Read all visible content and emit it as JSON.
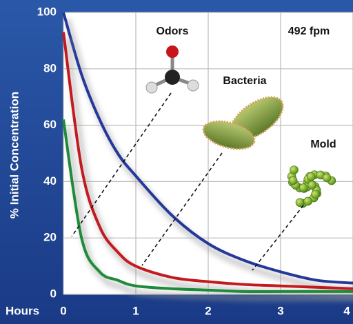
{
  "chart_data": {
    "type": "line",
    "ylabel": "% Initial Concentration",
    "xlabel": "Hours",
    "annotation": "492 fpm",
    "x": [
      0,
      0.25,
      0.5,
      0.75,
      1,
      1.5,
      2,
      2.5,
      3,
      3.5,
      4
    ],
    "series": [
      {
        "name": "Mold",
        "color": "#24389a",
        "values": [
          100,
          78,
          62,
          50,
          42,
          28,
          18,
          12,
          8,
          5,
          4
        ]
      },
      {
        "name": "Bacteria",
        "color": "#c21a1f",
        "values": [
          93,
          45,
          24,
          15,
          10,
          6,
          4.5,
          3.5,
          3,
          2.5,
          2
        ]
      },
      {
        "name": "Odors",
        "color": "#1f8a3a",
        "values": [
          62,
          20,
          8,
          5,
          3,
          2,
          1.5,
          1,
          1,
          1,
          1
        ]
      }
    ],
    "xlim": [
      0,
      4
    ],
    "xticks": [
      0,
      1,
      2,
      3,
      4
    ],
    "ylim": [
      0,
      100
    ],
    "yticks": [
      0,
      20,
      40,
      60,
      80,
      100
    ],
    "grid": true
  }
}
